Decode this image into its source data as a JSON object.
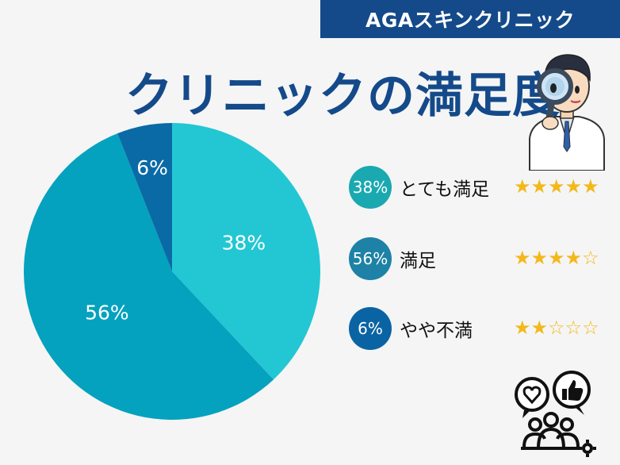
{
  "header": {
    "brand": "AGAスキンクリニック",
    "title": "クリニックの満足度"
  },
  "chart_data": {
    "type": "pie",
    "title": "クリニックの満足度",
    "slices": [
      {
        "label": "とても満足",
        "value": 38,
        "display": "38%",
        "color": "#22c7d3",
        "stars": 5
      },
      {
        "label": "満足",
        "value": 56,
        "display": "56%",
        "color": "#04a2be",
        "stars": 4
      },
      {
        "label": "やや不満",
        "value": 6,
        "display": "6%",
        "color": "#0a6aa6",
        "stars": 2
      }
    ]
  },
  "legend": [
    {
      "badge": "38%",
      "label": "とても満足",
      "badge_color": "#1aa9b0",
      "stars": 5
    },
    {
      "badge": "56%",
      "label": "満足",
      "badge_color": "#1e82a6",
      "stars": 4
    },
    {
      "badge": "6%",
      "label": "やや不満",
      "badge_color": "#0a64a4",
      "stars": 2
    }
  ],
  "icons": {
    "doctor": "doctor-with-magnifier-icon",
    "community": "community-feedback-icon",
    "star_full": "★",
    "star_empty": "☆"
  }
}
